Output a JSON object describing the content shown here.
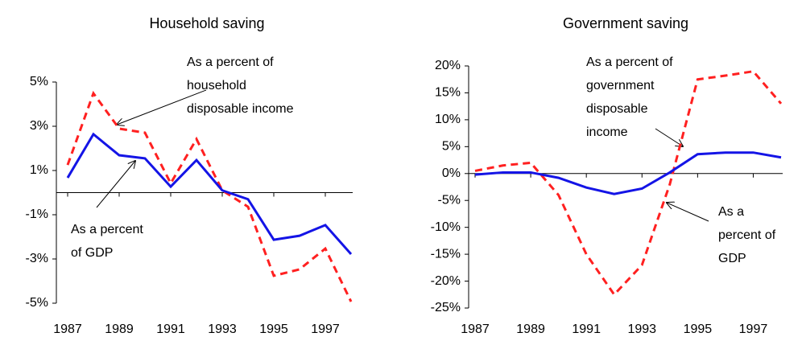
{
  "chart_data": [
    {
      "type": "line",
      "title": "Household saving",
      "x": [
        1987,
        1988,
        1989,
        1990,
        1991,
        1992,
        1993,
        1994,
        1995,
        1996,
        1997,
        1998
      ],
      "xlim": [
        1987,
        1998
      ],
      "xticks": [
        1987,
        1989,
        1991,
        1993,
        1995,
        1997
      ],
      "ylim": [
        -5,
        5
      ],
      "yticks": [
        {
          "value": -5,
          "label": "-5%"
        },
        {
          "value": -3,
          "label": "-3%"
        },
        {
          "value": -1,
          "label": "-1%"
        },
        {
          "value": 1,
          "label": "1%"
        },
        {
          "value": 3,
          "label": "3%"
        },
        {
          "value": 5,
          "label": "5%"
        }
      ],
      "series": [
        {
          "color": "#ff2020",
          "dashed": true,
          "values": [
            1.25,
            4.49,
            2.89,
            2.71,
            0.42,
            2.42,
            0.1,
            -0.64,
            -3.76,
            -3.47,
            -2.53,
            -4.93
          ]
        },
        {
          "color": "#1414e6",
          "dashed": false,
          "values": [
            0.67,
            2.64,
            1.69,
            1.55,
            0.27,
            1.47,
            0.1,
            -0.3,
            -2.13,
            -1.95,
            -1.47,
            -2.78
          ]
        }
      ],
      "annotations": [
        {
          "lines": [
            "As a percent of",
            "household",
            "disposable income"
          ]
        },
        {
          "lines": [
            "As a percent",
            "of GDP"
          ]
        }
      ]
    },
    {
      "type": "line",
      "title": "Government saving",
      "x": [
        1987,
        1988,
        1989,
        1990,
        1991,
        1992,
        1993,
        1994,
        1995,
        1996,
        1997,
        1998
      ],
      "xlim": [
        1987,
        1998
      ],
      "xticks": [
        1987,
        1989,
        1991,
        1993,
        1995,
        1997
      ],
      "ylim": [
        -25,
        20
      ],
      "yticks": [
        {
          "value": -25,
          "label": "-25%"
        },
        {
          "value": -20,
          "label": "-20%"
        },
        {
          "value": -15,
          "label": "-15%"
        },
        {
          "value": -10,
          "label": "-10%"
        },
        {
          "value": -5,
          "label": "-5%"
        },
        {
          "value": 0,
          "label": "0%"
        },
        {
          "value": 5,
          "label": "5%"
        },
        {
          "value": 10,
          "label": "10%"
        },
        {
          "value": 15,
          "label": "15%"
        },
        {
          "value": 20,
          "label": "20%"
        }
      ],
      "series": [
        {
          "color": "#ff2020",
          "dashed": true,
          "values": [
            0.5,
            1.5,
            2,
            -4,
            -15,
            -22.5,
            -17,
            -2,
            17.5,
            18.2,
            19,
            13
          ]
        },
        {
          "color": "#1414e6",
          "dashed": false,
          "values": [
            -0.2,
            0.2,
            0.2,
            -0.8,
            -2.6,
            -3.8,
            -2.8,
            0.2,
            3.6,
            3.9,
            3.9,
            3.0
          ]
        }
      ],
      "annotations": [
        {
          "lines": [
            "As a percent of",
            "government",
            "disposable",
            "income"
          ]
        },
        {
          "lines": [
            "As a",
            "percent of",
            "GDP"
          ]
        }
      ]
    }
  ]
}
